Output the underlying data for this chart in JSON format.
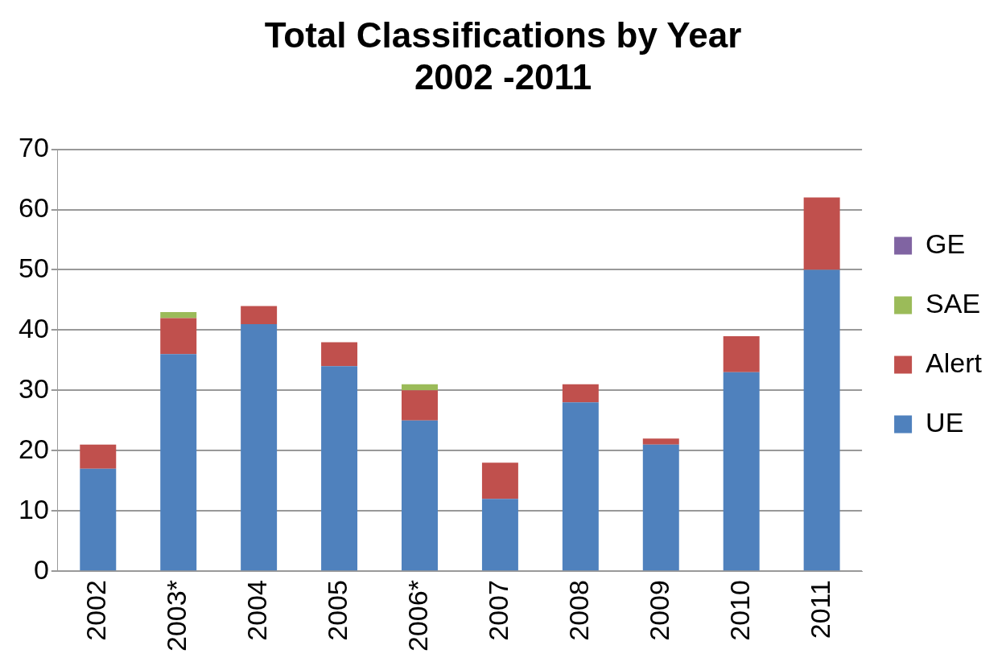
{
  "chart_data": {
    "type": "bar",
    "title": "Total Classifications by Year\n2002 -2011",
    "categories": [
      "2002",
      "2003*",
      "2004",
      "2005",
      "2006*",
      "2007",
      "2008",
      "2009",
      "2010",
      "2011"
    ],
    "stacked": true,
    "series": [
      {
        "name": "UE",
        "color": "#4f81bd",
        "values": [
          17,
          36,
          41,
          34,
          25,
          12,
          28,
          21,
          33,
          50
        ]
      },
      {
        "name": "Alert",
        "color": "#c0504d",
        "values": [
          4,
          6,
          3,
          4,
          5,
          6,
          3,
          1,
          6,
          12
        ]
      },
      {
        "name": "SAE",
        "color": "#9bbb59",
        "values": [
          0,
          1,
          0,
          0,
          1,
          0,
          0,
          0,
          0,
          0
        ]
      },
      {
        "name": "GE",
        "color": "#8064a2",
        "values": [
          0,
          0,
          0,
          0,
          0,
          0,
          0,
          0,
          0,
          0
        ]
      }
    ],
    "ylim": [
      0,
      70
    ],
    "yticks": [
      0,
      10,
      20,
      30,
      40,
      50,
      60,
      70
    ],
    "grid": "y",
    "legend": "right"
  }
}
